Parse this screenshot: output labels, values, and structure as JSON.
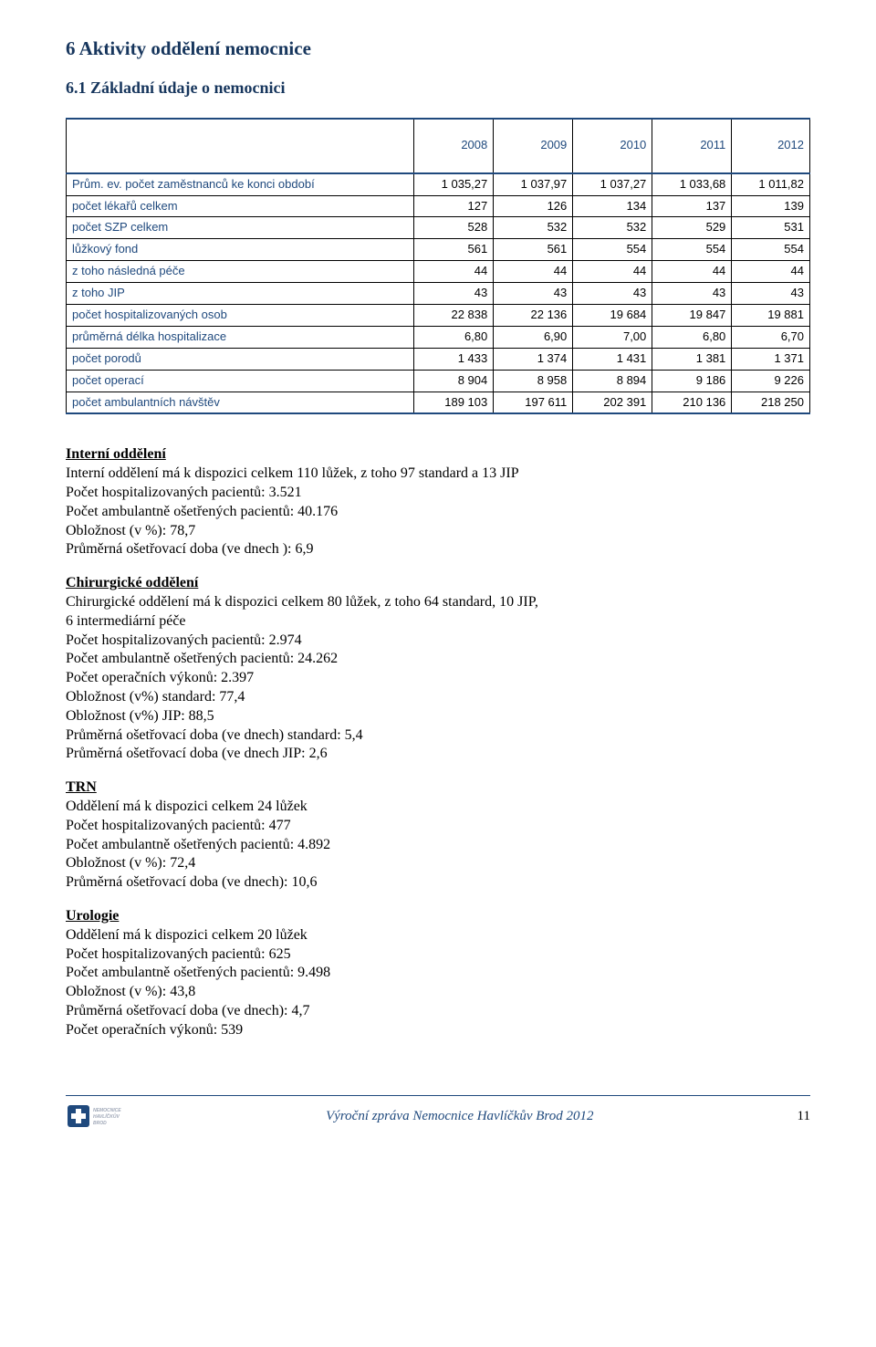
{
  "headings": {
    "h1": "6  Aktivity oddělení nemocnice",
    "h2": "6.1  Základní údaje o nemocnici"
  },
  "table": {
    "columns": [
      "",
      "2008",
      "2009",
      "2010",
      "2011",
      "2012"
    ],
    "rows": [
      [
        "Prům. ev. počet zaměstnanců ke konci období",
        "1 035,27",
        "1 037,97",
        "1 037,27",
        "1 033,68",
        "1 011,82"
      ],
      [
        "počet lékařů celkem",
        "127",
        "126",
        "134",
        "137",
        "139"
      ],
      [
        "počet SZP celkem",
        "528",
        "532",
        "532",
        "529",
        "531"
      ],
      [
        "lůžkový fond",
        "561",
        "561",
        "554",
        "554",
        "554"
      ],
      [
        "z toho následná péče",
        "44",
        "44",
        "44",
        "44",
        "44"
      ],
      [
        "z toho JIP",
        "43",
        "43",
        "43",
        "43",
        "43"
      ],
      [
        "počet hospitalizovaných osob",
        "22 838",
        "22 136",
        "19 684",
        "19 847",
        "19 881"
      ],
      [
        "průměrná délka hospitalizace",
        "6,80",
        "6,90",
        "7,00",
        "6,80",
        "6,70"
      ],
      [
        "počet porodů",
        "1 433",
        "1 374",
        "1 431",
        "1 381",
        "1 371"
      ],
      [
        "počet operací",
        "8 904",
        "8 958",
        "8 894",
        "9 186",
        "9 226"
      ],
      [
        "počet ambulantních návštěv",
        "189 103",
        "197 611",
        "202 391",
        "210 136",
        "218 250"
      ]
    ]
  },
  "sections": {
    "interni": {
      "title": "Interní oddělení",
      "lines": [
        "Interní oddělení má k dispozici celkem 110 lůžek, z toho 97 standard a 13 JIP",
        "Počet hospitalizovaných pacientů: 3.521",
        "Počet ambulantně ošetřených pacientů: 40.176",
        "Obložnost (v %): 78,7",
        "Průměrná ošetřovací doba (ve dnech ): 6,9"
      ]
    },
    "chirurgicke": {
      "title": "Chirurgické oddělení",
      "lines": [
        "Chirurgické oddělení má k dispozici celkem 80 lůžek, z toho 64 standard, 10 JIP,",
        "6 intermediární péče",
        "Počet hospitalizovaných pacientů: 2.974",
        "Počet ambulantně ošetřených pacientů: 24.262",
        "Počet operačních výkonů: 2.397",
        "Obložnost (v%) standard: 77,4",
        "Obložnost (v%) JIP: 88,5",
        "Průměrná ošetřovací doba (ve dnech) standard: 5,4",
        "Průměrná ošetřovací doba (ve dnech  JIP: 2,6"
      ]
    },
    "trn": {
      "title": "TRN",
      "lines": [
        "Oddělení má k dispozici celkem 24 lůžek",
        "Počet hospitalizovaných pacientů: 477",
        "Počet ambulantně ošetřených pacientů: 4.892",
        "Obložnost (v %): 72,4",
        "Průměrná ošetřovací doba (ve dnech): 10,6"
      ]
    },
    "urologie": {
      "title": "Urologie",
      "lines": [
        "Oddělení má k dispozici celkem 20 lůžek",
        "Počet hospitalizovaných pacientů: 625",
        "Počet ambulantně ošetřených pacientů: 9.498",
        "Obložnost (v %): 43,8",
        "Průměrná ošetřovací doba (ve dnech): 4,7",
        "Počet operačních výkonů: 539"
      ]
    }
  },
  "footer": {
    "text": "Výroční zpráva Nemocnice Havlíčkův Brod 2012",
    "page": "11",
    "logo_color": "#1f497d",
    "logo_accent": "#a0a8b8"
  }
}
